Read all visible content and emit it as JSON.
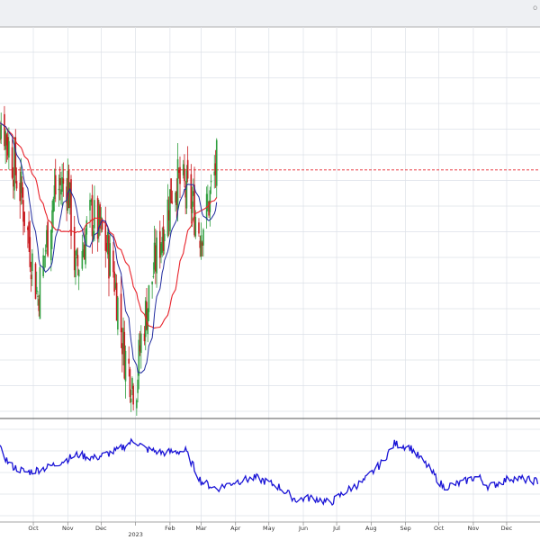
{
  "header": {
    "corner_label": "O"
  },
  "colors": {
    "background": "#ffffff",
    "header_band": "#eef0f3",
    "grid": "#dde1e8",
    "panel_border": "#555555",
    "candle_up": "#2e9e3e",
    "candle_down": "#c8191e",
    "ma_short": "#1f2a9e",
    "ma_long": "#e8232b",
    "reference_line": "#e8232b",
    "indicator": "#1a14d6",
    "tick_text": "#333333"
  },
  "chart_data": [
    {
      "type": "candlestick",
      "panel": "price",
      "x_axis_labels": [
        "Oct",
        "Nov",
        "Dec",
        "2023",
        "Feb",
        "Mar",
        "Apr",
        "May",
        "Jun",
        "Jul",
        "Aug",
        "Sep",
        "Oct",
        "Nov",
        "Dec"
      ],
      "date_range": [
        "2022-09-01",
        "2023-12-31"
      ],
      "data_end": "2023-03-15",
      "ylim": [
        0,
        100
      ],
      "grid": true,
      "reference_line": {
        "value": 64.5,
        "style": "dashed"
      },
      "key_points": [
        {
          "date": "2022-09-03",
          "close": 78
        },
        {
          "date": "2022-09-20",
          "close": 58
        },
        {
          "date": "2022-10-05",
          "close": 30
        },
        {
          "date": "2022-10-20",
          "close": 58
        },
        {
          "date": "2022-11-01",
          "close": 62
        },
        {
          "date": "2022-11-08",
          "close": 36
        },
        {
          "date": "2022-11-22",
          "close": 52
        },
        {
          "date": "2022-12-03",
          "close": 46
        },
        {
          "date": "2022-12-12",
          "close": 37
        },
        {
          "date": "2022-12-22",
          "close": 14
        },
        {
          "date": "2023-01-01",
          "close": 4
        },
        {
          "date": "2023-01-06",
          "close": 18
        },
        {
          "date": "2023-01-18",
          "close": 38
        },
        {
          "date": "2023-01-28",
          "close": 52
        },
        {
          "date": "2023-02-05",
          "close": 62
        },
        {
          "date": "2023-02-12",
          "close": 60
        },
        {
          "date": "2023-02-20",
          "close": 56
        },
        {
          "date": "2023-02-28",
          "close": 48
        },
        {
          "date": "2023-03-07",
          "close": 54
        },
        {
          "date": "2023-03-15",
          "close": 66
        }
      ],
      "series": [
        {
          "name": "",
          "kind": "moving-average-short"
        },
        {
          "name": "",
          "kind": "moving-average-long"
        }
      ]
    },
    {
      "type": "line",
      "panel": "indicator",
      "ylim": [
        0,
        100
      ],
      "key_points": [
        {
          "date": "2022-09-01",
          "value": 76
        },
        {
          "date": "2022-09-10",
          "value": 58
        },
        {
          "date": "2022-09-25",
          "value": 50
        },
        {
          "date": "2022-10-15",
          "value": 56
        },
        {
          "date": "2022-11-10",
          "value": 70
        },
        {
          "date": "2022-11-25",
          "value": 66
        },
        {
          "date": "2022-12-15",
          "value": 74
        },
        {
          "date": "2022-12-31",
          "value": 86
        },
        {
          "date": "2023-01-10",
          "value": 76
        },
        {
          "date": "2023-01-25",
          "value": 72
        },
        {
          "date": "2023-02-15",
          "value": 74
        },
        {
          "date": "2023-03-01",
          "value": 40
        },
        {
          "date": "2023-03-15",
          "value": 32
        },
        {
          "date": "2023-04-01",
          "value": 40
        },
        {
          "date": "2023-04-20",
          "value": 44
        },
        {
          "date": "2023-05-10",
          "value": 34
        },
        {
          "date": "2023-05-25",
          "value": 20
        },
        {
          "date": "2023-06-10",
          "value": 22
        },
        {
          "date": "2023-06-25",
          "value": 16
        },
        {
          "date": "2023-07-10",
          "value": 30
        },
        {
          "date": "2023-07-25",
          "value": 40
        },
        {
          "date": "2023-08-10",
          "value": 60
        },
        {
          "date": "2023-08-22",
          "value": 82
        },
        {
          "date": "2023-09-05",
          "value": 78
        },
        {
          "date": "2023-09-20",
          "value": 58
        },
        {
          "date": "2023-10-05",
          "value": 34
        },
        {
          "date": "2023-10-20",
          "value": 38
        },
        {
          "date": "2023-11-05",
          "value": 46
        },
        {
          "date": "2023-11-15",
          "value": 34
        },
        {
          "date": "2023-12-05",
          "value": 44
        },
        {
          "date": "2023-12-31",
          "value": 40
        }
      ]
    }
  ]
}
